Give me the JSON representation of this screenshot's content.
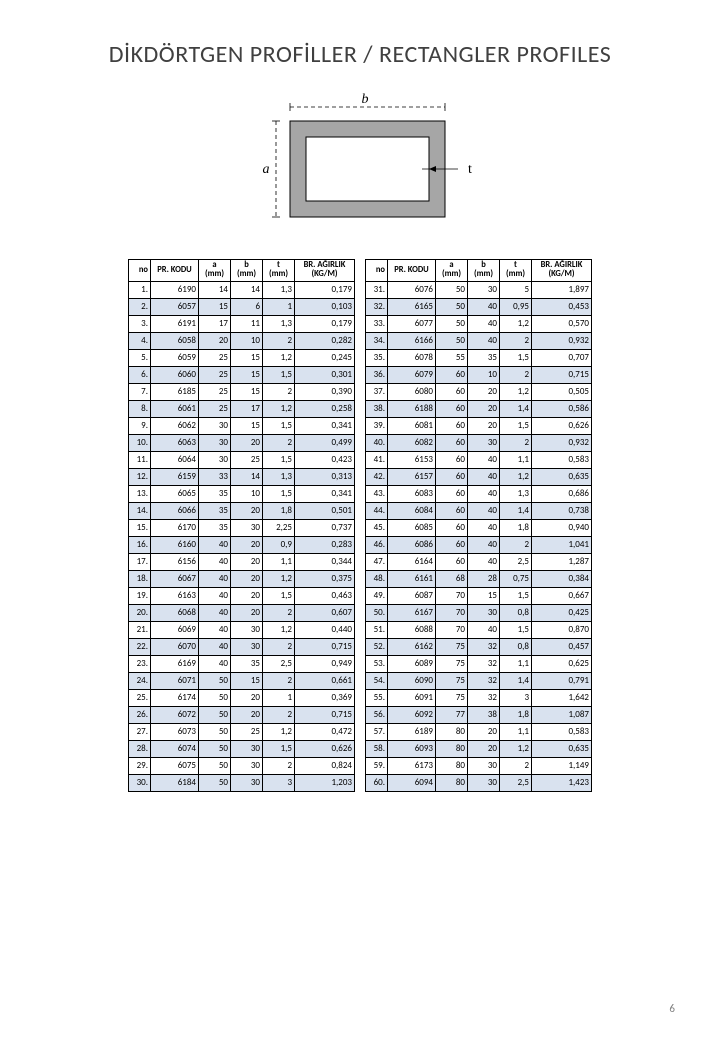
{
  "title": "DİKDÖRTGEN PROFİLLER / RECTANGLER PROFILES",
  "page_number": "6",
  "diagram": {
    "label_a": "a",
    "label_b": "b",
    "label_t": "t",
    "outer_fill": "#a6a6a6",
    "inner_fill": "#ffffff",
    "stroke": "#000000",
    "dash_stroke": "#000000"
  },
  "table": {
    "headers": {
      "no": "no",
      "kod": "PR. KODU",
      "a": "a",
      "a_unit": "(mm)",
      "b": "b",
      "b_unit": "(mm)",
      "t": "t",
      "t_unit": "(mm)",
      "w": "BR. AĞIRLIK",
      "w_unit": "(KG/M)"
    },
    "stripe_odd": "#d9e2ef",
    "stripe_even": "#ffffff",
    "border_color": "#000000",
    "font_size": 9,
    "left": [
      {
        "no": "1.",
        "kod": "6190",
        "a": "14",
        "b": "14",
        "t": "1,3",
        "w": "0,179"
      },
      {
        "no": "2.",
        "kod": "6057",
        "a": "15",
        "b": "6",
        "t": "1",
        "w": "0,103"
      },
      {
        "no": "3.",
        "kod": "6191",
        "a": "17",
        "b": "11",
        "t": "1,3",
        "w": "0,179"
      },
      {
        "no": "4.",
        "kod": "6058",
        "a": "20",
        "b": "10",
        "t": "2",
        "w": "0,282"
      },
      {
        "no": "5.",
        "kod": "6059",
        "a": "25",
        "b": "15",
        "t": "1,2",
        "w": "0,245"
      },
      {
        "no": "6.",
        "kod": "6060",
        "a": "25",
        "b": "15",
        "t": "1,5",
        "w": "0,301"
      },
      {
        "no": "7.",
        "kod": "6185",
        "a": "25",
        "b": "15",
        "t": "2",
        "w": "0,390"
      },
      {
        "no": "8.",
        "kod": "6061",
        "a": "25",
        "b": "17",
        "t": "1,2",
        "w": "0,258"
      },
      {
        "no": "9.",
        "kod": "6062",
        "a": "30",
        "b": "15",
        "t": "1,5",
        "w": "0,341"
      },
      {
        "no": "10.",
        "kod": "6063",
        "a": "30",
        "b": "20",
        "t": "2",
        "w": "0,499"
      },
      {
        "no": "11.",
        "kod": "6064",
        "a": "30",
        "b": "25",
        "t": "1,5",
        "w": "0,423"
      },
      {
        "no": "12.",
        "kod": "6159",
        "a": "33",
        "b": "14",
        "t": "1,3",
        "w": "0,313"
      },
      {
        "no": "13.",
        "kod": "6065",
        "a": "35",
        "b": "10",
        "t": "1,5",
        "w": "0,341"
      },
      {
        "no": "14.",
        "kod": "6066",
        "a": "35",
        "b": "20",
        "t": "1,8",
        "w": "0,501"
      },
      {
        "no": "15.",
        "kod": "6170",
        "a": "35",
        "b": "30",
        "t": "2,25",
        "w": "0,737"
      },
      {
        "no": "16.",
        "kod": "6160",
        "a": "40",
        "b": "20",
        "t": "0,9",
        "w": "0,283"
      },
      {
        "no": "17.",
        "kod": "6156",
        "a": "40",
        "b": "20",
        "t": "1,1",
        "w": "0,344"
      },
      {
        "no": "18.",
        "kod": "6067",
        "a": "40",
        "b": "20",
        "t": "1,2",
        "w": "0,375"
      },
      {
        "no": "19.",
        "kod": "6163",
        "a": "40",
        "b": "20",
        "t": "1,5",
        "w": "0,463"
      },
      {
        "no": "20.",
        "kod": "6068",
        "a": "40",
        "b": "20",
        "t": "2",
        "w": "0,607"
      },
      {
        "no": "21.",
        "kod": "6069",
        "a": "40",
        "b": "30",
        "t": "1,2",
        "w": "0,440"
      },
      {
        "no": "22.",
        "kod": "6070",
        "a": "40",
        "b": "30",
        "t": "2",
        "w": "0,715"
      },
      {
        "no": "23.",
        "kod": "6169",
        "a": "40",
        "b": "35",
        "t": "2,5",
        "w": "0,949"
      },
      {
        "no": "24.",
        "kod": "6071",
        "a": "50",
        "b": "15",
        "t": "2",
        "w": "0,661"
      },
      {
        "no": "25.",
        "kod": "6174",
        "a": "50",
        "b": "20",
        "t": "1",
        "w": "0,369"
      },
      {
        "no": "26.",
        "kod": "6072",
        "a": "50",
        "b": "20",
        "t": "2",
        "w": "0,715"
      },
      {
        "no": "27.",
        "kod": "6073",
        "a": "50",
        "b": "25",
        "t": "1,2",
        "w": "0,472"
      },
      {
        "no": "28.",
        "kod": "6074",
        "a": "50",
        "b": "30",
        "t": "1,5",
        "w": "0,626"
      },
      {
        "no": "29.",
        "kod": "6075",
        "a": "50",
        "b": "30",
        "t": "2",
        "w": "0,824"
      },
      {
        "no": "30.",
        "kod": "6184",
        "a": "50",
        "b": "30",
        "t": "3",
        "w": "1,203"
      }
    ],
    "right": [
      {
        "no": "31.",
        "kod": "6076",
        "a": "50",
        "b": "30",
        "t": "5",
        "w": "1,897"
      },
      {
        "no": "32.",
        "kod": "6165",
        "a": "50",
        "b": "40",
        "t": "0,95",
        "w": "0,453"
      },
      {
        "no": "33.",
        "kod": "6077",
        "a": "50",
        "b": "40",
        "t": "1,2",
        "w": "0,570"
      },
      {
        "no": "34.",
        "kod": "6166",
        "a": "50",
        "b": "40",
        "t": "2",
        "w": "0,932"
      },
      {
        "no": "35.",
        "kod": "6078",
        "a": "55",
        "b": "35",
        "t": "1,5",
        "w": "0,707"
      },
      {
        "no": "36.",
        "kod": "6079",
        "a": "60",
        "b": "10",
        "t": "2",
        "w": "0,715"
      },
      {
        "no": "37.",
        "kod": "6080",
        "a": "60",
        "b": "20",
        "t": "1,2",
        "w": "0,505"
      },
      {
        "no": "38.",
        "kod": "6188",
        "a": "60",
        "b": "20",
        "t": "1,4",
        "w": "0,586"
      },
      {
        "no": "39.",
        "kod": "6081",
        "a": "60",
        "b": "20",
        "t": "1,5",
        "w": "0,626"
      },
      {
        "no": "40.",
        "kod": "6082",
        "a": "60",
        "b": "30",
        "t": "2",
        "w": "0,932"
      },
      {
        "no": "41.",
        "kod": "6153",
        "a": "60",
        "b": "40",
        "t": "1,1",
        "w": "0,583"
      },
      {
        "no": "42.",
        "kod": "6157",
        "a": "60",
        "b": "40",
        "t": "1,2",
        "w": "0,635"
      },
      {
        "no": "43.",
        "kod": "6083",
        "a": "60",
        "b": "40",
        "t": "1,3",
        "w": "0,686"
      },
      {
        "no": "44.",
        "kod": "6084",
        "a": "60",
        "b": "40",
        "t": "1,4",
        "w": "0,738"
      },
      {
        "no": "45.",
        "kod": "6085",
        "a": "60",
        "b": "40",
        "t": "1,8",
        "w": "0,940"
      },
      {
        "no": "46.",
        "kod": "6086",
        "a": "60",
        "b": "40",
        "t": "2",
        "w": "1,041"
      },
      {
        "no": "47.",
        "kod": "6164",
        "a": "60",
        "b": "40",
        "t": "2,5",
        "w": "1,287"
      },
      {
        "no": "48.",
        "kod": "6161",
        "a": "68",
        "b": "28",
        "t": "0,75",
        "w": "0,384"
      },
      {
        "no": "49.",
        "kod": "6087",
        "a": "70",
        "b": "15",
        "t": "1,5",
        "w": "0,667"
      },
      {
        "no": "50.",
        "kod": "6167",
        "a": "70",
        "b": "30",
        "t": "0,8",
        "w": "0,425"
      },
      {
        "no": "51.",
        "kod": "6088",
        "a": "70",
        "b": "40",
        "t": "1,5",
        "w": "0,870"
      },
      {
        "no": "52.",
        "kod": "6162",
        "a": "75",
        "b": "32",
        "t": "0,8",
        "w": "0,457"
      },
      {
        "no": "53.",
        "kod": "6089",
        "a": "75",
        "b": "32",
        "t": "1,1",
        "w": "0,625"
      },
      {
        "no": "54.",
        "kod": "6090",
        "a": "75",
        "b": "32",
        "t": "1,4",
        "w": "0,791"
      },
      {
        "no": "55.",
        "kod": "6091",
        "a": "75",
        "b": "32",
        "t": "3",
        "w": "1,642"
      },
      {
        "no": "56.",
        "kod": "6092",
        "a": "77",
        "b": "38",
        "t": "1,8",
        "w": "1,087"
      },
      {
        "no": "57.",
        "kod": "6189",
        "a": "80",
        "b": "20",
        "t": "1,1",
        "w": "0,583"
      },
      {
        "no": "58.",
        "kod": "6093",
        "a": "80",
        "b": "20",
        "t": "1,2",
        "w": "0,635"
      },
      {
        "no": "59.",
        "kod": "6173",
        "a": "80",
        "b": "30",
        "t": "2",
        "w": "1,149"
      },
      {
        "no": "60.",
        "kod": "6094",
        "a": "80",
        "b": "30",
        "t": "2,5",
        "w": "1,423"
      }
    ]
  }
}
